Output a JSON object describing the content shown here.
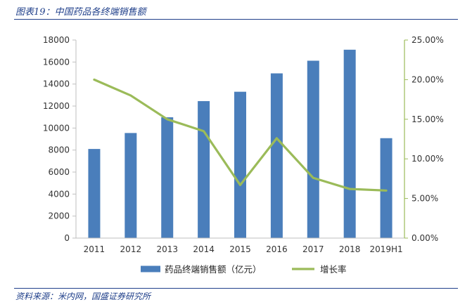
{
  "figure_title": "图表19：中国药品各终端销售额",
  "source_text": "资料来源：米内网，国盛证券研究所",
  "chart_data": {
    "type": "bar",
    "categories": [
      "2011",
      "2012",
      "2013",
      "2014",
      "2015",
      "2016",
      "2017",
      "2018",
      "2019H1"
    ],
    "series": [
      {
        "name": "药品终端销售额（亿元）",
        "type": "bar",
        "axis": "left",
        "color": "#4a7ebb",
        "values": [
          8100,
          9550,
          10980,
          12450,
          13300,
          14970,
          16120,
          17120,
          9080
        ]
      },
      {
        "name": "增长率",
        "type": "line",
        "axis": "right",
        "color": "#9bbb59",
        "values": [
          0.2,
          0.18,
          0.15,
          0.135,
          0.067,
          0.126,
          0.076,
          0.062,
          0.06
        ]
      }
    ],
    "y_left": {
      "min": 0,
      "max": 18000,
      "ticks": [
        "0",
        "2000",
        "4000",
        "6000",
        "8000",
        "10000",
        "12000",
        "14000",
        "16000",
        "18000"
      ]
    },
    "y_right": {
      "min": 0,
      "max": 0.25,
      "ticks": [
        "0.00%",
        "5.00%",
        "10.00%",
        "15.00%",
        "20.00%",
        "25.00%"
      ]
    },
    "legend_position": "bottom",
    "grid": false
  }
}
